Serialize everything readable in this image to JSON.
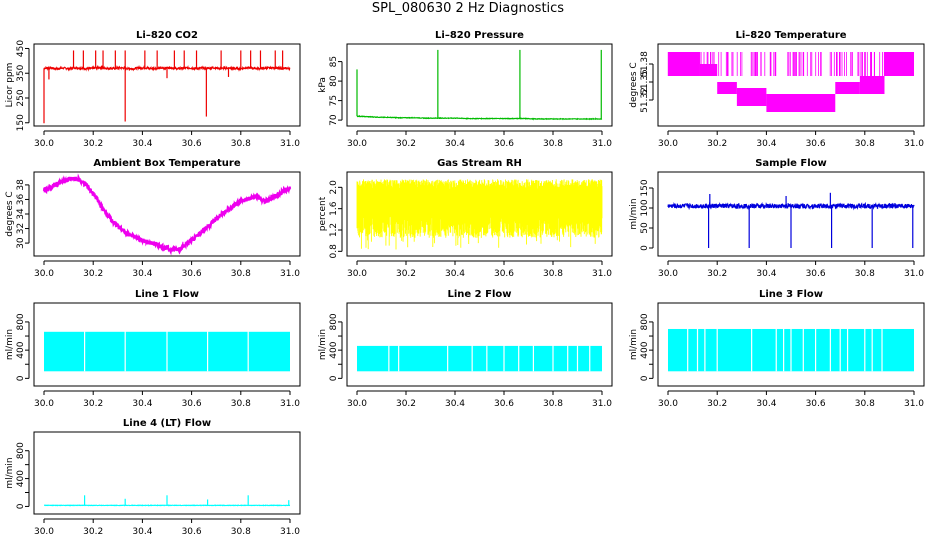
{
  "figure_title": "SPL_080630  2 Hz Diagnostics",
  "chart_data": [
    {
      "type": "line",
      "title": "Li–820 CO2",
      "ylabel": "Licor ppm",
      "color": "#ee0000",
      "xlim": [
        30.0,
        31.0
      ],
      "ylim": [
        145,
        460
      ],
      "xticks": [
        "30.0",
        "30.2",
        "30.4",
        "30.6",
        "30.8",
        "31.0"
      ],
      "yticks": [
        "150",
        "250",
        "350",
        "450"
      ],
      "ytick_values": [
        150,
        250,
        350,
        450
      ],
      "series": [
        {
          "values": [
            370,
            372,
            368,
            371,
            369,
            372,
            370,
            368,
            371,
            373,
            370,
            369,
            372,
            370,
            368,
            371,
            372,
            369,
            370,
            371,
            373,
            368,
            370,
            372,
            369,
            371,
            370,
            372,
            369,
            371,
            370,
            368,
            372,
            371,
            369,
            370,
            372,
            371,
            369,
            370
          ]
        }
      ]
    },
    {
      "type": "line",
      "title": "Li–820 Pressure",
      "ylabel": "kPa",
      "color": "#00bb00",
      "xlim": [
        30.0,
        31.0
      ],
      "ylim": [
        69,
        89
      ],
      "xticks": [
        "30.0",
        "30.2",
        "30.4",
        "30.6",
        "30.8",
        "31.0"
      ],
      "yticks": [
        "70",
        "75",
        "80",
        "85"
      ],
      "ytick_values": [
        70,
        75,
        80,
        85
      ],
      "series": [
        {
          "values": [
            71.0,
            70.9,
            70.8,
            70.7,
            70.7,
            70.6,
            70.6,
            70.6,
            70.5,
            70.5,
            70.5,
            70.5,
            70.5,
            70.4,
            70.4,
            70.4,
            70.4,
            70.4,
            70.4,
            70.4,
            70.4,
            70.3,
            70.3,
            70.3,
            70.3,
            70.3,
            70.3,
            70.3,
            70.3,
            70.3
          ]
        }
      ]
    },
    {
      "type": "line",
      "title": "Li–820 Temperature",
      "ylabel": "degrees C",
      "color": "#ff00ff",
      "xlim": [
        30.0,
        31.0
      ],
      "ylim": [
        51.28,
        51.41
      ],
      "xticks": [
        "30.0",
        "30.2",
        "30.4",
        "30.6",
        "30.8",
        "31.0"
      ],
      "yticks": [
        "51.32",
        "51.35",
        "51.38"
      ],
      "ytick_values": [
        51.32,
        51.35,
        51.38
      ],
      "series": [
        {
          "values": [
            51.38,
            51.38,
            51.36,
            51.34,
            51.32,
            51.31,
            51.31,
            51.32,
            51.34,
            51.36,
            51.38
          ]
        }
      ]
    },
    {
      "type": "line",
      "title": "Ambient Box Temperature",
      "ylabel": "degrees C",
      "color": "#ee00ee",
      "xlim": [
        30.0,
        31.0
      ],
      "ylim": [
        28.5,
        39.5
      ],
      "xticks": [
        "30.0",
        "30.2",
        "30.4",
        "30.6",
        "30.8",
        "31.0"
      ],
      "yticks": [
        "30",
        "32",
        "34",
        "36",
        "38"
      ],
      "ytick_values": [
        30,
        32,
        34,
        36,
        38
      ],
      "series": [
        {
          "values": [
            37.2,
            37.8,
            38.4,
            38.8,
            38.8,
            38.0,
            36.5,
            34.6,
            33.1,
            32.0,
            31.2,
            30.7,
            30.2,
            29.9,
            29.5,
            29.1,
            29.2,
            30.0,
            31.0,
            32.0,
            33.0,
            34.0,
            34.8,
            35.6,
            36.1,
            36.4,
            35.8,
            36.3,
            37.0,
            37.6
          ]
        }
      ]
    },
    {
      "type": "line",
      "title": "Gas Stream RH",
      "ylabel": "percent",
      "color": "#ffff00",
      "xlim": [
        30.0,
        31.0
      ],
      "ylim": [
        0.75,
        2.25
      ],
      "xticks": [
        "30.0",
        "30.2",
        "30.4",
        "30.6",
        "30.8",
        "31.0"
      ],
      "yticks": [
        "0.8",
        "1.2",
        "1.6",
        "2.0"
      ],
      "ytick_values": [
        0.8,
        1.2,
        1.6,
        2.0
      ],
      "series": [
        {
          "values": [
            1.6
          ]
        }
      ]
    },
    {
      "type": "line",
      "title": "Sample Flow",
      "ylabel": "ml/min",
      "color": "#0000dd",
      "xlim": [
        30.0,
        31.0
      ],
      "ylim": [
        -15,
        185
      ],
      "xticks": [
        "30.0",
        "30.2",
        "30.4",
        "30.6",
        "30.8",
        "31.0"
      ],
      "yticks": [
        "0",
        "50",
        "100",
        "150"
      ],
      "ytick_values": [
        0,
        50,
        100,
        150
      ],
      "series": [
        {
          "values": [
            105
          ]
        }
      ]
    },
    {
      "type": "area",
      "title": "Line 1 Flow",
      "ylabel": "ml/min",
      "color": "#00ffff",
      "xlim": [
        30.0,
        31.0
      ],
      "ylim": [
        -80,
        1040
      ],
      "xticks": [
        "30.0",
        "30.2",
        "30.4",
        "30.6",
        "30.8",
        "31.0"
      ],
      "yticks": [
        "0",
        "400",
        "800"
      ],
      "ytick_values": [
        0,
        200,
        400,
        600,
        800
      ],
      "series": [
        {
          "values": [
            660
          ]
        }
      ]
    },
    {
      "type": "area",
      "title": "Line 2 Flow",
      "ylabel": "ml/min",
      "color": "#00ffff",
      "xlim": [
        30.0,
        31.0
      ],
      "ylim": [
        -80,
        1040
      ],
      "xticks": [
        "30.0",
        "30.2",
        "30.4",
        "30.6",
        "30.8",
        "31.0"
      ],
      "yticks": [
        "0",
        "400",
        "800"
      ],
      "ytick_values": [
        0,
        200,
        400,
        600,
        800
      ],
      "series": [
        {
          "values": [
            460
          ]
        }
      ]
    },
    {
      "type": "area",
      "title": "Line 3 Flow",
      "ylabel": "ml/min",
      "color": "#00ffff",
      "xlim": [
        30.0,
        31.0
      ],
      "ylim": [
        -80,
        1040
      ],
      "xticks": [
        "30.0",
        "30.2",
        "30.4",
        "30.6",
        "30.8",
        "31.0"
      ],
      "yticks": [
        "0",
        "400",
        "800"
      ],
      "ytick_values": [
        0,
        200,
        400,
        600,
        800
      ],
      "series": [
        {
          "values": [
            700
          ]
        }
      ]
    },
    {
      "type": "line",
      "title": "Line 4 (LT) Flow",
      "ylabel": "ml/min",
      "color": "#00ffff",
      "xlim": [
        30.0,
        31.0
      ],
      "ylim": [
        -80,
        1040
      ],
      "xticks": [
        "30.0",
        "30.2",
        "30.4",
        "30.6",
        "30.8",
        "31.0"
      ],
      "yticks": [
        "0",
        "400",
        "800"
      ],
      "ytick_values": [
        0,
        200,
        400,
        600,
        800
      ],
      "series": [
        {
          "values": [
            15
          ]
        }
      ]
    }
  ]
}
